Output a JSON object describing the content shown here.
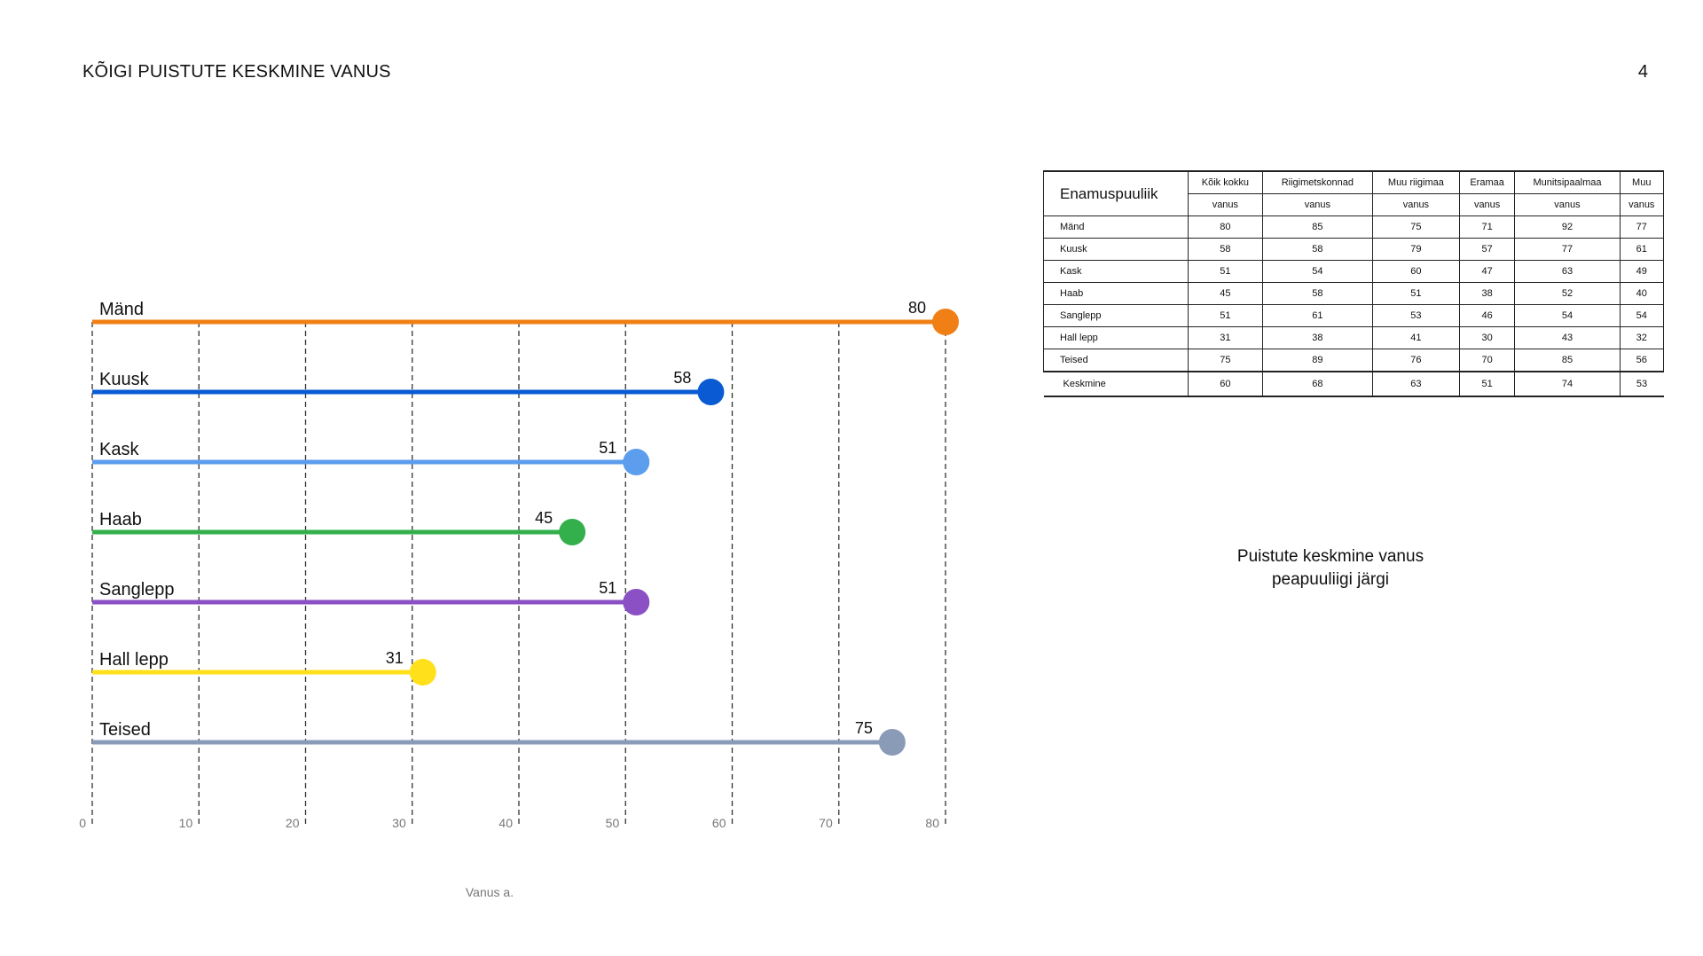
{
  "page": {
    "title": "KÕIGI PUISTUTE KESKMINE VANUS",
    "number": "4"
  },
  "chart_data": {
    "type": "bar",
    "categories": [
      "Mänd",
      "Kuusk",
      "Kask",
      "Haab",
      "Sanglepp",
      "Hall lepp",
      "Teised"
    ],
    "values": [
      80,
      58,
      51,
      45,
      51,
      31,
      75
    ],
    "colors": [
      "#f07f16",
      "#0a5bd3",
      "#5c9ded",
      "#33b04b",
      "#8a50c4",
      "#ffe01a",
      "#8a9bb8"
    ],
    "xlim": [
      0,
      80
    ],
    "xticks": [
      0,
      10,
      20,
      30,
      40,
      50,
      60,
      70,
      80
    ],
    "xlabel": "Vanus a.",
    "grid": "vertical dashed"
  },
  "table": {
    "corner": "Enamuspuuliik",
    "columns": [
      "Kõik kokku",
      "Riigimetskonnad",
      "Muu riigimaa",
      "Eramaa",
      "Munitsipaalmaa",
      "Muu"
    ],
    "subheader": [
      "vanus",
      "vanus",
      "vanus",
      "vanus",
      "vanus",
      "vanus"
    ],
    "rows": [
      {
        "name": "Mänd",
        "values": [
          "80",
          "85",
          "75",
          "71",
          "92",
          "77"
        ]
      },
      {
        "name": "Kuusk",
        "values": [
          "58",
          "58",
          "79",
          "57",
          "77",
          "61"
        ]
      },
      {
        "name": "Kask",
        "values": [
          "51",
          "54",
          "60",
          "47",
          "63",
          "49"
        ]
      },
      {
        "name": "Haab",
        "values": [
          "45",
          "58",
          "51",
          "38",
          "52",
          "40"
        ]
      },
      {
        "name": "Sanglepp",
        "values": [
          "51",
          "61",
          "53",
          "46",
          "54",
          "54"
        ]
      },
      {
        "name": "Hall lepp",
        "values": [
          "31",
          "38",
          "41",
          "30",
          "43",
          "32"
        ]
      },
      {
        "name": "Teised",
        "values": [
          "75",
          "89",
          "76",
          "70",
          "85",
          "56"
        ]
      }
    ],
    "total": {
      "name": "Keskmine",
      "values": [
        "60",
        "68",
        "63",
        "51",
        "74",
        "53"
      ]
    }
  },
  "caption": {
    "line1": "Puistute keskmine vanus",
    "line2": "peapuuliigi järgi"
  }
}
